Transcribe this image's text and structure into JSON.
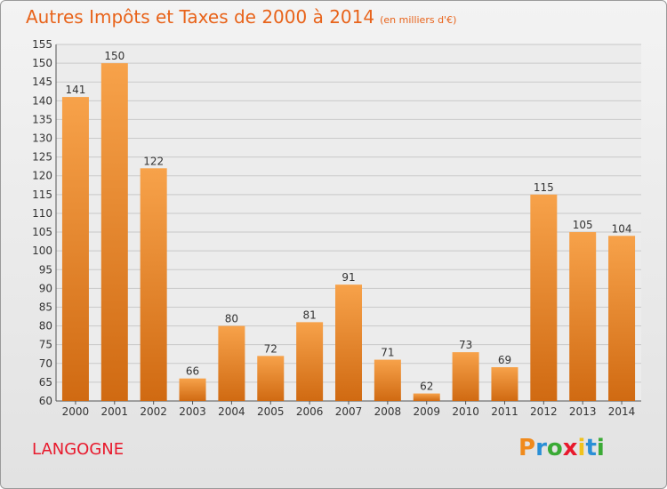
{
  "title": "Autres Impôts et Taxes de 2000 à 2014",
  "subtitle": "(en milliers d'€)",
  "commune": "LANGOGNE",
  "logo": {
    "letters": [
      "P",
      "r",
      "o",
      "x",
      "i",
      "t",
      "i"
    ],
    "colors": [
      "#f08a1c",
      "#2a8fd6",
      "#3aaa35",
      "#e8192c",
      "#f0c21c",
      "#2a8fd6",
      "#3aaa35"
    ]
  },
  "colors": {
    "accent": "#e8631a",
    "bar_top": "#f7a24a",
    "bar_bottom": "#d06a12",
    "commune": "#e8192c"
  },
  "chart_data": {
    "type": "bar",
    "title": "Autres Impôts et Taxes de 2000 à 2014",
    "subtitle": "(en milliers d'€)",
    "categories": [
      "2000",
      "2001",
      "2002",
      "2003",
      "2004",
      "2005",
      "2006",
      "2007",
      "2008",
      "2009",
      "2010",
      "2011",
      "2012",
      "2013",
      "2014"
    ],
    "values": [
      141,
      150,
      122,
      66,
      80,
      72,
      81,
      91,
      71,
      62,
      73,
      69,
      115,
      105,
      104
    ],
    "ylim": [
      60,
      155
    ],
    "yticks": [
      60,
      65,
      70,
      75,
      80,
      85,
      90,
      95,
      100,
      105,
      110,
      115,
      120,
      125,
      130,
      135,
      140,
      145,
      150,
      155
    ],
    "grid": true,
    "xlabel": "",
    "ylabel": ""
  }
}
